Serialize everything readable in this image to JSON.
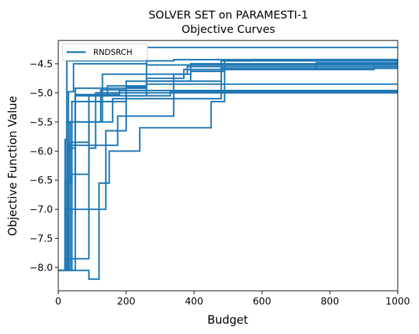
{
  "chart_data": {
    "type": "line",
    "step": true,
    "title": "SOLVER SET on PARAMESTI-1",
    "subtitle": "Objective Curves",
    "xlabel": "Budget",
    "ylabel": "Objective Function Value",
    "xlim": [
      0,
      1000
    ],
    "ylim": [
      -8.4,
      -4.1
    ],
    "xticks": [
      0,
      200,
      400,
      600,
      800,
      1000
    ],
    "yticks": [
      -8.0,
      -7.5,
      -7.0,
      -6.5,
      -6.0,
      -5.5,
      -5.0,
      -4.5
    ],
    "xtick_labels": [
      "0",
      "200",
      "400",
      "600",
      "800",
      "1000"
    ],
    "ytick_labels": [
      "−8.0",
      "−7.5",
      "−7.0",
      "−6.5",
      "−6.0",
      "−5.5",
      "−5.0",
      "−4.5"
    ],
    "grid": false,
    "legend_position": "upper-left",
    "legend_entry": "RNDSRCH",
    "line_color": "#1f77b4",
    "series": [
      {
        "name": "RNDSRCH",
        "points": [
          [
            0,
            -8.05
          ],
          [
            20,
            -8.05
          ],
          [
            20,
            -5.8
          ],
          [
            25,
            -5.8
          ],
          [
            25,
            -4.45
          ],
          [
            340,
            -4.45
          ],
          [
            340,
            -4.43
          ],
          [
            1000,
            -4.43
          ]
        ]
      },
      {
        "name": "",
        "points": [
          [
            0,
            -8.05
          ],
          [
            30,
            -8.05
          ],
          [
            30,
            -4.98
          ],
          [
            45,
            -4.98
          ],
          [
            45,
            -4.5
          ],
          [
            260,
            -4.5
          ],
          [
            260,
            -4.22
          ],
          [
            1000,
            -4.22
          ]
        ]
      },
      {
        "name": "",
        "points": [
          [
            0,
            -8.05
          ],
          [
            40,
            -8.05
          ],
          [
            40,
            -6.4
          ],
          [
            90,
            -6.4
          ],
          [
            90,
            -5.5
          ],
          [
            160,
            -5.5
          ],
          [
            160,
            -5.1
          ],
          [
            480,
            -5.1
          ],
          [
            480,
            -4.45
          ],
          [
            1000,
            -4.45
          ]
        ]
      },
      {
        "name": "",
        "points": [
          [
            0,
            -8.05
          ],
          [
            25,
            -8.05
          ],
          [
            25,
            -6.5
          ],
          [
            35,
            -6.5
          ],
          [
            35,
            -5.5
          ],
          [
            130,
            -5.5
          ],
          [
            130,
            -4.68
          ],
          [
            380,
            -4.68
          ],
          [
            380,
            -4.55
          ],
          [
            1000,
            -4.55
          ]
        ]
      },
      {
        "name": "",
        "points": [
          [
            0,
            -8.05
          ],
          [
            50,
            -8.05
          ],
          [
            50,
            -5.03
          ],
          [
            180,
            -5.03
          ],
          [
            180,
            -4.96
          ],
          [
            1000,
            -4.96
          ]
        ]
      },
      {
        "name": "",
        "points": [
          [
            0,
            -8.05
          ],
          [
            90,
            -8.05
          ],
          [
            90,
            -8.2
          ],
          [
            120,
            -8.2
          ],
          [
            120,
            -6.55
          ],
          [
            150,
            -6.55
          ],
          [
            150,
            -6.0
          ],
          [
            240,
            -6.0
          ],
          [
            240,
            -5.6
          ],
          [
            450,
            -5.6
          ],
          [
            450,
            -5.15
          ],
          [
            490,
            -5.15
          ],
          [
            490,
            -4.45
          ],
          [
            570,
            -4.45
          ],
          [
            570,
            -4.43
          ],
          [
            1000,
            -4.43
          ]
        ]
      },
      {
        "name": "",
        "points": [
          [
            0,
            -8.05
          ],
          [
            25,
            -8.05
          ],
          [
            25,
            -7.0
          ],
          [
            140,
            -7.0
          ],
          [
            140,
            -5.65
          ],
          [
            200,
            -5.65
          ],
          [
            200,
            -4.9
          ],
          [
            260,
            -4.9
          ],
          [
            260,
            -4.85
          ],
          [
            1000,
            -4.85
          ]
        ]
      },
      {
        "name": "",
        "points": [
          [
            0,
            -8.05
          ],
          [
            20,
            -8.05
          ],
          [
            20,
            -7.85
          ],
          [
            90,
            -7.85
          ],
          [
            90,
            -5.95
          ],
          [
            110,
            -5.95
          ],
          [
            110,
            -5.0
          ],
          [
            1000,
            -5.0
          ]
        ]
      },
      {
        "name": "",
        "points": [
          [
            0,
            -8.05
          ],
          [
            30,
            -8.05
          ],
          [
            30,
            -5.95
          ],
          [
            50,
            -5.95
          ],
          [
            50,
            -4.92
          ],
          [
            190,
            -4.92
          ],
          [
            190,
            -4.92
          ],
          [
            260,
            -4.92
          ],
          [
            260,
            -4.52
          ],
          [
            1000,
            -4.52
          ]
        ]
      },
      {
        "name": "",
        "points": [
          [
            0,
            -8.05
          ],
          [
            35,
            -8.05
          ],
          [
            35,
            -5.9
          ],
          [
            175,
            -5.9
          ],
          [
            175,
            -5.4
          ],
          [
            340,
            -5.4
          ],
          [
            340,
            -4.68
          ],
          [
            390,
            -4.68
          ],
          [
            390,
            -4.5
          ],
          [
            1000,
            -4.5
          ]
        ]
      },
      {
        "name": "",
        "points": [
          [
            0,
            -8.05
          ],
          [
            30,
            -8.05
          ],
          [
            30,
            -5.85
          ],
          [
            90,
            -5.85
          ],
          [
            90,
            -5.05
          ],
          [
            145,
            -5.05
          ],
          [
            145,
            -4.88
          ],
          [
            260,
            -4.88
          ],
          [
            260,
            -4.8
          ],
          [
            390,
            -4.8
          ],
          [
            390,
            -4.63
          ],
          [
            490,
            -4.63
          ],
          [
            490,
            -4.6
          ],
          [
            930,
            -4.6
          ],
          [
            930,
            -4.55
          ],
          [
            1000,
            -4.55
          ]
        ]
      },
      {
        "name": "",
        "points": [
          [
            0,
            -8.05
          ],
          [
            20,
            -8.05
          ],
          [
            20,
            -6.55
          ],
          [
            40,
            -6.55
          ],
          [
            40,
            -5.15
          ],
          [
            200,
            -5.15
          ],
          [
            200,
            -5.05
          ],
          [
            330,
            -5.05
          ],
          [
            330,
            -4.98
          ],
          [
            1000,
            -4.98
          ]
        ]
      },
      {
        "name": "",
        "points": [
          [
            0,
            -8.05
          ],
          [
            20,
            -8.05
          ],
          [
            20,
            -7.0
          ],
          [
            50,
            -7.0
          ],
          [
            50,
            -5.05
          ],
          [
            260,
            -5.05
          ],
          [
            260,
            -4.75
          ],
          [
            370,
            -4.75
          ],
          [
            370,
            -4.6
          ],
          [
            660,
            -4.6
          ],
          [
            660,
            -4.58
          ],
          [
            1000,
            -4.58
          ]
        ]
      },
      {
        "name": "",
        "points": [
          [
            0,
            -8.05
          ],
          [
            25,
            -8.05
          ],
          [
            25,
            -5.5
          ],
          [
            125,
            -5.5
          ],
          [
            125,
            -4.95
          ],
          [
            200,
            -4.95
          ],
          [
            200,
            -4.8
          ],
          [
            480,
            -4.8
          ],
          [
            480,
            -4.58
          ],
          [
            760,
            -4.58
          ],
          [
            760,
            -4.48
          ],
          [
            1000,
            -4.48
          ]
        ]
      }
    ]
  }
}
